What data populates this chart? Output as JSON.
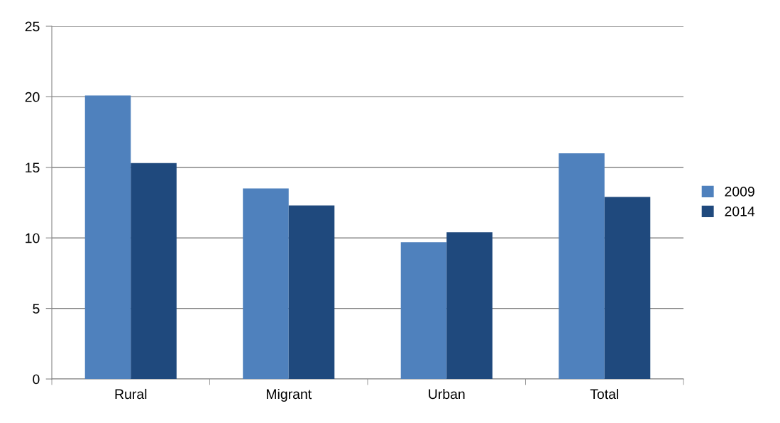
{
  "chart_data": {
    "type": "bar",
    "categories": [
      "Rural",
      "Migrant",
      "Urban",
      "Total"
    ],
    "series": [
      {
        "name": "2009",
        "color": "#4f81bd",
        "values": [
          20.1,
          13.5,
          9.7,
          16.0
        ]
      },
      {
        "name": "2014",
        "color": "#1f497d",
        "values": [
          15.3,
          12.3,
          10.4,
          12.9
        ]
      }
    ],
    "ylim": [
      0,
      25
    ],
    "yticks": [
      0,
      5,
      10,
      15,
      20,
      25
    ],
    "grid": "y",
    "legend": "right"
  }
}
